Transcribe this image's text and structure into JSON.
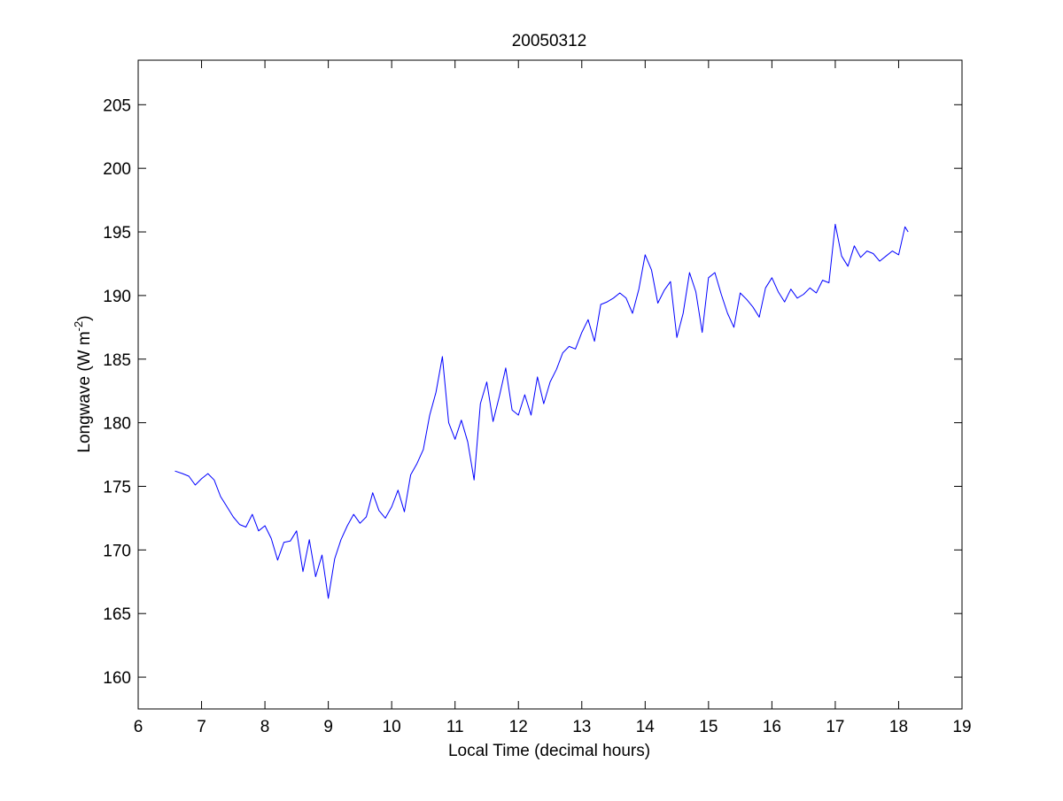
{
  "chart_data": {
    "type": "line",
    "title": "20050312",
    "xlabel": "Local Time (decimal hours)",
    "ylabel_main": "Longwave (W m",
    "ylabel_sup": "-2",
    "ylabel_close": ")",
    "xlim": [
      6,
      19
    ],
    "ylim": [
      157.5,
      208.5
    ],
    "x_ticks": [
      6,
      7,
      8,
      9,
      10,
      11,
      12,
      13,
      14,
      15,
      16,
      17,
      18,
      19
    ],
    "y_ticks": [
      160,
      165,
      170,
      175,
      180,
      185,
      190,
      195,
      200,
      205
    ],
    "grid": false,
    "line_color": "#0000ff",
    "series": [
      {
        "x": [
          6.58,
          6.7,
          6.8,
          6.9,
          7.0,
          7.1,
          7.2,
          7.3,
          7.4,
          7.5,
          7.6,
          7.7,
          7.8,
          7.9,
          8.0,
          8.1,
          8.2,
          8.3,
          8.4,
          8.5,
          8.6,
          8.7,
          8.8,
          8.9,
          9.0,
          9.1,
          9.2,
          9.3,
          9.4,
          9.5,
          9.6,
          9.7,
          9.8,
          9.9,
          10.0,
          10.1,
          10.2,
          10.3,
          10.4,
          10.5,
          10.6,
          10.7,
          10.8,
          10.9,
          11.0,
          11.1,
          11.2,
          11.3,
          11.4,
          11.5,
          11.6,
          11.7,
          11.8,
          11.9,
          12.0,
          12.1,
          12.2,
          12.3,
          12.4,
          12.5,
          12.6,
          12.7,
          12.8,
          12.9,
          13.0,
          13.1,
          13.2,
          13.3,
          13.4,
          13.5,
          13.6,
          13.7,
          13.8,
          13.9,
          14.0,
          14.1,
          14.2,
          14.3,
          14.4,
          14.5,
          14.6,
          14.7,
          14.8,
          14.9,
          15.0,
          15.1,
          15.2,
          15.3,
          15.4,
          15.5,
          15.6,
          15.7,
          15.8,
          15.9,
          16.0,
          16.1,
          16.2,
          16.3,
          16.4,
          16.5,
          16.6,
          16.7,
          16.8,
          16.9,
          17.0,
          17.1,
          17.2,
          17.3,
          17.4,
          17.5,
          17.6,
          17.7,
          17.8,
          17.9,
          18.0,
          18.1,
          18.15
        ],
        "y": [
          176.2,
          176.0,
          175.8,
          175.1,
          175.6,
          176.0,
          175.5,
          174.2,
          173.4,
          172.6,
          172.0,
          171.8,
          172.8,
          171.5,
          171.9,
          170.9,
          169.2,
          170.6,
          170.7,
          171.5,
          168.3,
          170.8,
          167.9,
          169.6,
          166.2,
          169.3,
          170.8,
          171.9,
          172.8,
          172.1,
          172.6,
          174.5,
          173.1,
          172.5,
          173.4,
          174.7,
          173.0,
          175.9,
          176.8,
          177.9,
          180.6,
          182.4,
          185.2,
          180.0,
          178.7,
          180.2,
          178.5,
          175.5,
          181.5,
          183.2,
          180.1,
          182.1,
          184.3,
          181.0,
          180.6,
          182.2,
          180.6,
          183.6,
          181.5,
          183.2,
          184.2,
          185.5,
          186.0,
          185.8,
          187.1,
          188.1,
          186.4,
          189.3,
          189.5,
          189.8,
          190.2,
          189.8,
          188.6,
          190.5,
          193.2,
          192.0,
          189.4,
          190.4,
          191.1,
          186.7,
          188.6,
          191.8,
          190.3,
          187.1,
          191.4,
          191.8,
          190.1,
          188.6,
          187.5,
          190.2,
          189.7,
          189.1,
          188.3,
          190.6,
          191.4,
          190.3,
          189.5,
          190.5,
          189.8,
          190.1,
          190.6,
          190.2,
          191.2,
          191.0,
          195.6,
          193.1,
          192.3,
          193.9,
          193.0,
          193.5,
          193.3,
          192.7,
          193.1,
          193.5,
          193.2,
          195.4,
          195.0
        ]
      }
    ]
  }
}
